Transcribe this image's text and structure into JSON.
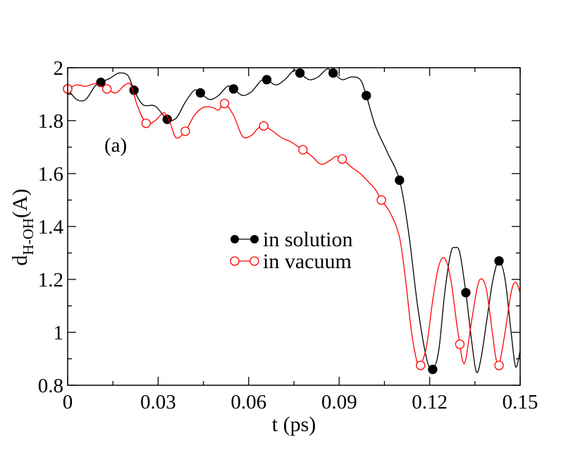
{
  "chart_data": {
    "type": "line",
    "title": "",
    "annotation": "(a)",
    "xlabel": "t (ps)",
    "ylabel_main": "d",
    "ylabel_sub": "H-OH",
    "ylabel_tail": "(A)",
    "xlim": [
      0,
      0.15
    ],
    "ylim": [
      0.8,
      2.0
    ],
    "x_ticks": [
      0,
      0.03,
      0.06,
      0.09,
      0.12,
      0.15
    ],
    "x_tick_labels": [
      "0",
      "0.03",
      "0.06",
      "0.09",
      "0.12",
      "0.15"
    ],
    "y_ticks": [
      0.8,
      1.0,
      1.2,
      1.4,
      1.6,
      1.8,
      2.0
    ],
    "y_tick_labels": [
      "0.8",
      "1",
      "1.2",
      "1.4",
      "1.6",
      "1.8",
      "2"
    ],
    "grid": false,
    "legend_position": "center",
    "series": [
      {
        "name": "in solution",
        "color": "#000000",
        "marker": "filled-circle",
        "markers": [
          {
            "x": 0.0,
            "y": 1.92
          },
          {
            "x": 0.011,
            "y": 1.945
          },
          {
            "x": 0.022,
            "y": 1.915
          },
          {
            "x": 0.033,
            "y": 1.805
          },
          {
            "x": 0.044,
            "y": 1.905
          },
          {
            "x": 0.055,
            "y": 1.92
          },
          {
            "x": 0.066,
            "y": 1.955
          },
          {
            "x": 0.077,
            "y": 1.98
          },
          {
            "x": 0.088,
            "y": 1.98
          },
          {
            "x": 0.099,
            "y": 1.895
          },
          {
            "x": 0.11,
            "y": 1.575
          },
          {
            "x": 0.121,
            "y": 0.86
          },
          {
            "x": 0.132,
            "y": 1.15
          },
          {
            "x": 0.143,
            "y": 1.27
          }
        ],
        "curve": [
          [
            0.0,
            1.92
          ],
          [
            0.003,
            1.88
          ],
          [
            0.006,
            1.88
          ],
          [
            0.009,
            1.93
          ],
          [
            0.011,
            1.945
          ],
          [
            0.014,
            1.96
          ],
          [
            0.017,
            1.98
          ],
          [
            0.02,
            1.97
          ],
          [
            0.022,
            1.915
          ],
          [
            0.025,
            1.86
          ],
          [
            0.029,
            1.855
          ],
          [
            0.033,
            1.805
          ],
          [
            0.036,
            1.81
          ],
          [
            0.039,
            1.87
          ],
          [
            0.042,
            1.915
          ],
          [
            0.044,
            1.905
          ],
          [
            0.047,
            1.88
          ],
          [
            0.05,
            1.895
          ],
          [
            0.053,
            1.93
          ],
          [
            0.055,
            1.92
          ],
          [
            0.058,
            1.895
          ],
          [
            0.061,
            1.91
          ],
          [
            0.064,
            1.95
          ],
          [
            0.066,
            1.955
          ],
          [
            0.069,
            1.935
          ],
          [
            0.072,
            1.955
          ],
          [
            0.075,
            1.99
          ],
          [
            0.077,
            1.98
          ],
          [
            0.08,
            1.955
          ],
          [
            0.083,
            1.965
          ],
          [
            0.086,
            1.995
          ],
          [
            0.088,
            1.98
          ],
          [
            0.091,
            1.955
          ],
          [
            0.094,
            1.965
          ],
          [
            0.097,
            1.955
          ],
          [
            0.099,
            1.895
          ],
          [
            0.102,
            1.78
          ],
          [
            0.106,
            1.68
          ],
          [
            0.11,
            1.575
          ],
          [
            0.113,
            1.38
          ],
          [
            0.116,
            1.1
          ],
          [
            0.119,
            0.9
          ],
          [
            0.121,
            0.86
          ],
          [
            0.123,
            0.93
          ],
          [
            0.125,
            1.15
          ],
          [
            0.127,
            1.3
          ],
          [
            0.1285,
            1.32
          ],
          [
            0.13,
            1.3
          ],
          [
            0.132,
            1.15
          ],
          [
            0.134,
            0.96
          ],
          [
            0.1355,
            0.85
          ],
          [
            0.137,
            0.9
          ],
          [
            0.139,
            1.05
          ],
          [
            0.141,
            1.2
          ],
          [
            0.143,
            1.27
          ],
          [
            0.145,
            1.2
          ],
          [
            0.147,
            1.0
          ],
          [
            0.1485,
            0.87
          ],
          [
            0.15,
            0.93
          ]
        ]
      },
      {
        "name": "in vacuum",
        "color": "#ff0000",
        "marker": "open-circle",
        "markers": [
          {
            "x": 0.0,
            "y": 1.92
          },
          {
            "x": 0.013,
            "y": 1.92
          },
          {
            "x": 0.026,
            "y": 1.79
          },
          {
            "x": 0.039,
            "y": 1.76
          },
          {
            "x": 0.052,
            "y": 1.865
          },
          {
            "x": 0.065,
            "y": 1.78
          },
          {
            "x": 0.078,
            "y": 1.69
          },
          {
            "x": 0.091,
            "y": 1.655
          },
          {
            "x": 0.104,
            "y": 1.5
          },
          {
            "x": 0.117,
            "y": 0.875
          },
          {
            "x": 0.13,
            "y": 0.955
          },
          {
            "x": 0.143,
            "y": 0.875
          }
        ],
        "curve": [
          [
            0.0,
            1.92
          ],
          [
            0.003,
            1.935
          ],
          [
            0.006,
            1.93
          ],
          [
            0.009,
            1.94
          ],
          [
            0.011,
            1.93
          ],
          [
            0.013,
            1.92
          ],
          [
            0.016,
            1.905
          ],
          [
            0.019,
            1.935
          ],
          [
            0.021,
            1.935
          ],
          [
            0.023,
            1.86
          ],
          [
            0.026,
            1.79
          ],
          [
            0.029,
            1.8
          ],
          [
            0.032,
            1.83
          ],
          [
            0.034,
            1.79
          ],
          [
            0.036,
            1.735
          ],
          [
            0.039,
            1.76
          ],
          [
            0.042,
            1.82
          ],
          [
            0.045,
            1.85
          ],
          [
            0.048,
            1.85
          ],
          [
            0.05,
            1.84
          ],
          [
            0.052,
            1.865
          ],
          [
            0.055,
            1.82
          ],
          [
            0.058,
            1.74
          ],
          [
            0.061,
            1.745
          ],
          [
            0.063,
            1.77
          ],
          [
            0.065,
            1.78
          ],
          [
            0.068,
            1.76
          ],
          [
            0.071,
            1.735
          ],
          [
            0.074,
            1.72
          ],
          [
            0.076,
            1.705
          ],
          [
            0.078,
            1.69
          ],
          [
            0.081,
            1.665
          ],
          [
            0.084,
            1.635
          ],
          [
            0.087,
            1.65
          ],
          [
            0.089,
            1.665
          ],
          [
            0.091,
            1.655
          ],
          [
            0.094,
            1.625
          ],
          [
            0.097,
            1.6
          ],
          [
            0.1,
            1.565
          ],
          [
            0.102,
            1.54
          ],
          [
            0.104,
            1.5
          ],
          [
            0.107,
            1.45
          ],
          [
            0.11,
            1.36
          ],
          [
            0.112,
            1.2
          ],
          [
            0.114,
            1.0
          ],
          [
            0.116,
            0.88
          ],
          [
            0.117,
            0.875
          ],
          [
            0.119,
            0.95
          ],
          [
            0.121,
            1.12
          ],
          [
            0.123,
            1.25
          ],
          [
            0.125,
            1.28
          ],
          [
            0.127,
            1.2
          ],
          [
            0.129,
            1.03
          ],
          [
            0.13,
            0.955
          ],
          [
            0.131,
            0.89
          ],
          [
            0.132,
            0.9
          ],
          [
            0.134,
            1.05
          ],
          [
            0.136,
            1.18
          ],
          [
            0.1375,
            1.2
          ],
          [
            0.139,
            1.15
          ],
          [
            0.141,
            0.98
          ],
          [
            0.142,
            0.9
          ],
          [
            0.143,
            0.875
          ],
          [
            0.145,
            1.0
          ],
          [
            0.147,
            1.15
          ],
          [
            0.1485,
            1.19
          ],
          [
            0.15,
            1.15
          ]
        ]
      }
    ]
  }
}
